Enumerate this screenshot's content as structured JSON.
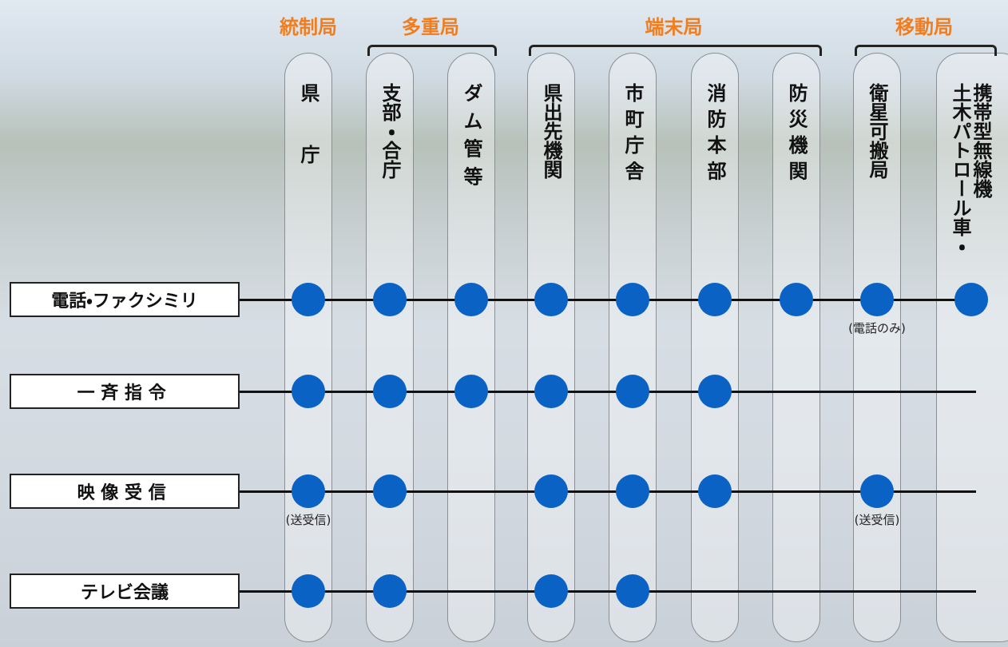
{
  "groups": [
    {
      "label": "統制局",
      "columns": [
        {
          "lines": [
            "県庁"
          ]
        }
      ]
    },
    {
      "label": "多重局",
      "columns": [
        {
          "lines": [
            "支部・合庁"
          ]
        },
        {
          "lines": [
            "ダム管等"
          ]
        }
      ]
    },
    {
      "label": "端末局",
      "columns": [
        {
          "lines": [
            "県出先機関"
          ]
        },
        {
          "lines": [
            "市町庁舎"
          ]
        },
        {
          "lines": [
            "消防本部"
          ]
        },
        {
          "lines": [
            "防災機関"
          ]
        }
      ]
    },
    {
      "label": "移動局",
      "columns": [
        {
          "lines": [
            "衛星可搬局"
          ]
        },
        {
          "lines": [
            "携帯型無線機",
            "土木パトロール車・"
          ]
        }
      ]
    }
  ],
  "rows": [
    {
      "label": "電話・ファクシミリ",
      "connected": [
        true,
        true,
        true,
        true,
        true,
        true,
        true,
        true,
        true
      ],
      "notes": [
        null,
        null,
        null,
        null,
        null,
        null,
        null,
        "(電話のみ)",
        null
      ]
    },
    {
      "label": "一斉指令",
      "connected": [
        true,
        true,
        true,
        true,
        true,
        true,
        false,
        false,
        false
      ],
      "notes": [
        null,
        null,
        null,
        null,
        null,
        null,
        null,
        null,
        null
      ]
    },
    {
      "label": "映像受信",
      "connected": [
        true,
        true,
        false,
        true,
        true,
        true,
        false,
        true,
        false
      ],
      "notes": [
        "(送受信)",
        null,
        null,
        null,
        null,
        null,
        null,
        "(送受信)",
        null
      ]
    },
    {
      "label": "テレビ会議",
      "connected": [
        true,
        true,
        false,
        true,
        true,
        false,
        false,
        false,
        false
      ],
      "notes": [
        null,
        null,
        null,
        null,
        null,
        null,
        null,
        null,
        null
      ]
    }
  ]
}
